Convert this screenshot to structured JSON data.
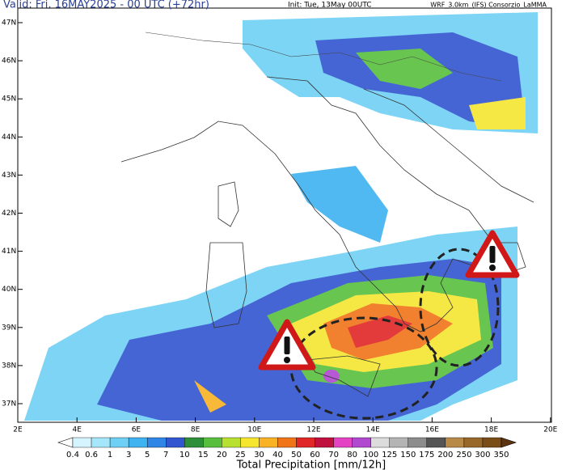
{
  "header": {
    "valid": "Valid: Fri, 16MAY2025 - 00 UTC (+72hr)",
    "init": "Init: Tue, 13May 00UTC",
    "model": "WRF_3.0km_(IFS) Consorzio_LaMMA"
  },
  "map": {
    "lat_labels": [
      "47N",
      "46N",
      "45N",
      "44N",
      "43N",
      "42N",
      "41N",
      "40N",
      "39N",
      "38N",
      "37N"
    ],
    "lon_labels": [
      "2E",
      "4E",
      "6E",
      "8E",
      "10E",
      "12E",
      "14E",
      "16E",
      "18E",
      "20E"
    ]
  },
  "colorbar": {
    "labels": [
      "0.4",
      "0.6",
      "1",
      "3",
      "5",
      "7",
      "10",
      "15",
      "20",
      "25",
      "30",
      "40",
      "50",
      "60",
      "70",
      "80",
      "100",
      "125",
      "150",
      "175",
      "200",
      "250",
      "300",
      "350"
    ],
    "colors": [
      "#ffffff",
      "#d6f4ff",
      "#a6e6fa",
      "#6fd0f5",
      "#3fb2f0",
      "#2f86e6",
      "#3255d0",
      "#2e8f3a",
      "#58bf3e",
      "#b8e030",
      "#f6e630",
      "#f8b224",
      "#f07418",
      "#e02626",
      "#c0103e",
      "#e444c4",
      "#b048d0",
      "#dcdcdc",
      "#b4b4b4",
      "#8c8c8c",
      "#555555",
      "#b88a48",
      "#98682a",
      "#7a4c18",
      "#5c3410"
    ],
    "title": "Total Precipitation [mm/12h]"
  }
}
